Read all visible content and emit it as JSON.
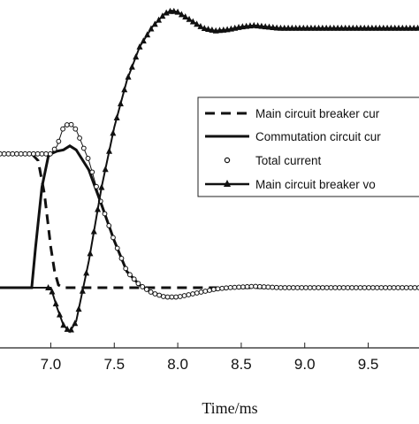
{
  "chart_data": {
    "type": "line",
    "title": "",
    "xlabel": "Time/ms",
    "ylabel": "",
    "xlim": [
      6.6,
      9.9
    ],
    "ylim": [
      -0.45,
      2.15
    ],
    "x_ticks": [
      "7.0",
      "7.5",
      "8.0",
      "8.5",
      "9.0",
      "9.5"
    ],
    "x_tick_values": [
      7.0,
      7.5,
      8.0,
      8.5,
      9.0,
      9.5
    ],
    "grid": false,
    "legend": {
      "position": "right",
      "entries": [
        "Main circuit breaker cur",
        "Commutation circuit cur",
        "Total current",
        "Main circuit breaker vo"
      ]
    },
    "series": [
      {
        "name": "Main circuit breaker cur",
        "style": "dashed",
        "x": [
          6.6,
          6.85,
          6.9,
          6.95,
          7.0,
          7.03,
          7.06,
          7.1,
          7.2,
          7.5,
          8.0,
          8.5,
          9.0,
          9.5,
          9.9
        ],
        "y": [
          1.0,
          1.0,
          0.95,
          0.7,
          0.3,
          0.12,
          0.02,
          0.0,
          0.0,
          0.0,
          0.0,
          0.0,
          0.0,
          0.0,
          0.0
        ]
      },
      {
        "name": "Commutation circuit cur",
        "style": "solid",
        "x": [
          6.6,
          6.85,
          6.88,
          6.93,
          6.98,
          7.0,
          7.05,
          7.1,
          7.15,
          7.2,
          7.3,
          7.4,
          7.5,
          7.6,
          7.7,
          7.8,
          7.9,
          8.0,
          8.1,
          8.2,
          8.4,
          8.6,
          8.8,
          9.0,
          9.5,
          9.9
        ],
        "y": [
          0.0,
          0.0,
          0.3,
          0.75,
          0.98,
          1.0,
          1.02,
          1.03,
          1.06,
          1.03,
          0.88,
          0.62,
          0.35,
          0.12,
          0.02,
          -0.04,
          -0.07,
          -0.07,
          -0.05,
          -0.03,
          0.0,
          0.01,
          0.0,
          0.0,
          0.0,
          0.0
        ]
      },
      {
        "name": "Total current",
        "style": "circles",
        "x": [
          6.6,
          6.8,
          7.0,
          7.05,
          7.1,
          7.15,
          7.2,
          7.3,
          7.4,
          7.5,
          7.6,
          7.7,
          7.8,
          7.9,
          8.0,
          8.1,
          8.2,
          8.3,
          8.4,
          8.6,
          8.8,
          9.0,
          9.5,
          9.9
        ],
        "y": [
          1.0,
          1.0,
          1.0,
          1.06,
          1.2,
          1.23,
          1.18,
          0.95,
          0.62,
          0.35,
          0.12,
          0.02,
          -0.04,
          -0.07,
          -0.07,
          -0.05,
          -0.03,
          -0.01,
          0.0,
          0.01,
          0.0,
          0.0,
          0.0,
          0.0
        ]
      },
      {
        "name": "Main circuit breaker vo",
        "style": "solid-triangles",
        "x": [
          6.6,
          7.0,
          7.05,
          7.1,
          7.15,
          7.2,
          7.3,
          7.4,
          7.5,
          7.6,
          7.7,
          7.8,
          7.9,
          7.95,
          8.0,
          8.1,
          8.2,
          8.3,
          8.4,
          8.5,
          8.6,
          8.7,
          8.8,
          9.0,
          9.2,
          9.5,
          9.9
        ],
        "y": [
          0.0,
          0.0,
          -0.15,
          -0.28,
          -0.33,
          -0.25,
          0.2,
          0.75,
          1.2,
          1.55,
          1.8,
          1.95,
          2.05,
          2.07,
          2.06,
          2.0,
          1.94,
          1.92,
          1.93,
          1.95,
          1.96,
          1.95,
          1.94,
          1.94,
          1.94,
          1.94,
          1.94
        ]
      }
    ]
  }
}
